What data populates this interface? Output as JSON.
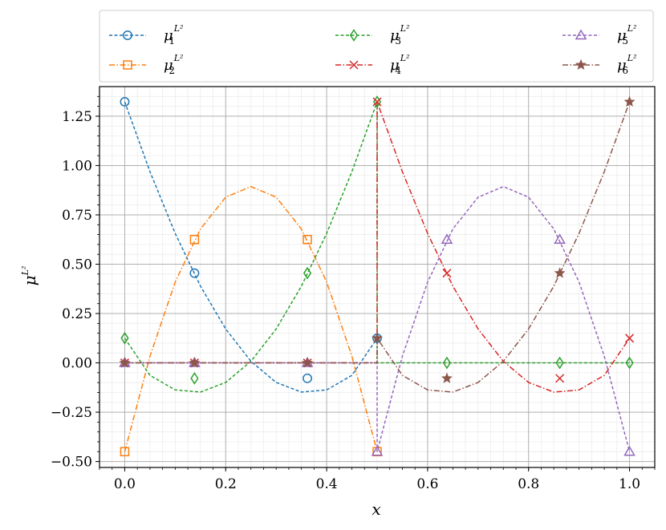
{
  "chart_data": {
    "type": "line",
    "xlabel": "x",
    "ylabel": "μ",
    "ylabel_sup": "L²",
    "xlim": [
      -0.05,
      1.05
    ],
    "ylim": [
      -0.53,
      1.4
    ],
    "xticks": [
      0.0,
      0.2,
      0.4,
      0.6,
      0.8,
      1.0
    ],
    "xtick_labels": [
      "0.0",
      "0.2",
      "0.4",
      "0.6",
      "0.8",
      "1.0"
    ],
    "yticks": [
      -0.5,
      -0.25,
      0.0,
      0.25,
      0.5,
      0.75,
      1.0,
      1.25
    ],
    "ytick_labels": [
      "−0.50",
      "−0.25",
      "0.00",
      "0.25",
      "0.50",
      "0.75",
      "1.00",
      "1.25"
    ],
    "grid": true,
    "minor_grid": true,
    "legend_position": "top (outside plot), 3 columns",
    "series": [
      {
        "name": "μ",
        "sub": "1",
        "sup": "L²",
        "color": "#1f77b4",
        "dash": "dashed",
        "marker": "circle",
        "x": [
          0.0,
          0.1382,
          0.3618,
          0.5
        ],
        "y": [
          1.3229,
          0.4546,
          -0.0784,
          0.125
        ],
        "curve_x": [
          0.0,
          0.05,
          0.1,
          0.15,
          0.2,
          0.25,
          0.3,
          0.35,
          0.4,
          0.45,
          0.5
        ],
        "curve_y": [
          1.3229,
          0.9689,
          0.6559,
          0.3889,
          0.1719,
          0.0079,
          -0.0991,
          -0.1481,
          -0.1371,
          -0.0631,
          0.125
        ]
      },
      {
        "name": "μ",
        "sub": "2",
        "sup": "L²",
        "color": "#ff7f0e",
        "dash": "dashdot",
        "marker": "square",
        "x": [
          0.0,
          0.1382,
          0.3618,
          0.5
        ],
        "y": [
          -0.45,
          0.625,
          0.625,
          -0.45
        ],
        "curve_x": [
          0.0,
          0.05,
          0.1,
          0.15,
          0.2,
          0.25,
          0.3,
          0.35,
          0.4,
          0.45,
          0.5
        ],
        "curve_y": [
          -0.45,
          0.0336,
          0.4096,
          0.6784,
          0.8396,
          0.8933,
          0.8396,
          0.6784,
          0.4096,
          0.0336,
          -0.45
        ]
      },
      {
        "name": "μ",
        "sub": "3",
        "sup": "L²",
        "color": "#2ca02c",
        "dash": "dashed",
        "marker": "diamond",
        "x": [
          0.0,
          0.1382,
          0.3618,
          0.5,
          0.6382,
          0.8618,
          1.0
        ],
        "y": [
          0.125,
          -0.0784,
          0.4546,
          1.3229,
          0.0,
          0.0,
          0.0
        ],
        "curve_x": [
          0.0,
          0.05,
          0.1,
          0.15,
          0.2,
          0.25,
          0.3,
          0.35,
          0.4,
          0.45,
          0.5,
          0.5,
          1.0
        ],
        "curve_y": [
          0.125,
          -0.0631,
          -0.1371,
          -0.1481,
          -0.0991,
          0.0079,
          0.1719,
          0.3889,
          0.6559,
          0.9689,
          1.3229,
          0.0,
          0.0
        ]
      },
      {
        "name": "μ",
        "sub": "4",
        "sup": "L²",
        "color": "#d62728",
        "dash": "dashdot",
        "marker": "x",
        "x": [
          0.0,
          0.1382,
          0.3618,
          0.5,
          0.6382,
          0.8618,
          1.0
        ],
        "y": [
          0.0,
          0.0,
          0.0,
          1.3229,
          0.4546,
          -0.0784,
          0.125
        ],
        "curve_x": [
          0.0,
          0.5,
          0.5,
          0.55,
          0.6,
          0.65,
          0.7,
          0.75,
          0.8,
          0.85,
          0.9,
          0.95,
          1.0
        ],
        "curve_y": [
          0.0,
          0.0,
          1.3229,
          0.9689,
          0.6559,
          0.3889,
          0.1719,
          0.0079,
          -0.0991,
          -0.1481,
          -0.1371,
          -0.0631,
          0.125
        ]
      },
      {
        "name": "μ",
        "sub": "5",
        "sup": "L²",
        "color": "#9467bd",
        "dash": "dashed",
        "marker": "triangle",
        "x": [
          0.0,
          0.1382,
          0.3618,
          0.5,
          0.6382,
          0.8618,
          1.0
        ],
        "y": [
          0.0,
          0.0,
          0.0,
          -0.45,
          0.625,
          0.625,
          -0.45
        ],
        "curve_x": [
          0.0,
          0.5,
          0.5,
          0.55,
          0.6,
          0.65,
          0.7,
          0.75,
          0.8,
          0.85,
          0.9,
          0.95,
          1.0
        ],
        "curve_y": [
          0.0,
          0.0,
          -0.45,
          0.0336,
          0.4096,
          0.6784,
          0.8396,
          0.8933,
          0.8396,
          0.6784,
          0.4096,
          0.0336,
          -0.45
        ]
      },
      {
        "name": "μ",
        "sub": "6",
        "sup": "L²",
        "color": "#8c564b",
        "dash": "dashdot",
        "marker": "star",
        "x": [
          0.0,
          0.1382,
          0.3618,
          0.5,
          0.6382,
          0.8618,
          1.0
        ],
        "y": [
          0.0,
          0.0,
          0.0,
          0.125,
          -0.0784,
          0.4546,
          1.3229
        ],
        "curve_x": [
          0.0,
          0.5,
          0.5,
          0.55,
          0.6,
          0.65,
          0.7,
          0.75,
          0.8,
          0.85,
          0.9,
          0.95,
          1.0
        ],
        "curve_y": [
          0.0,
          0.0,
          0.125,
          -0.0631,
          -0.1371,
          -0.1481,
          -0.0991,
          0.0079,
          0.1719,
          0.3889,
          0.6559,
          0.9689,
          1.3229
        ]
      }
    ]
  }
}
